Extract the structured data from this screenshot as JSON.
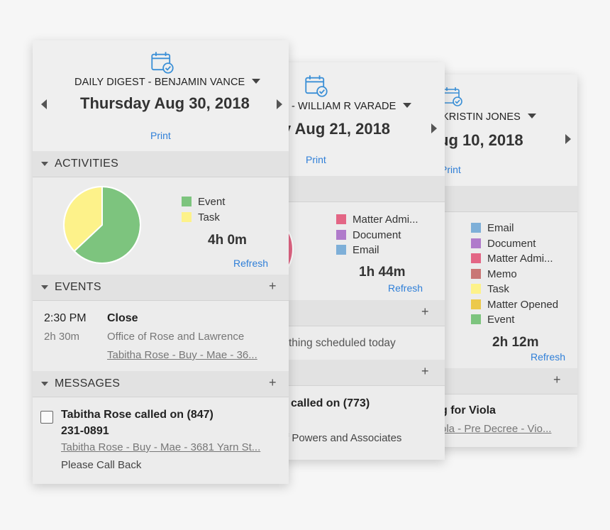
{
  "colors": {
    "event": "#7dc47e",
    "task": "#fdf28a",
    "matter_admin": "#e36685",
    "document": "#b07bcb",
    "email": "#7eafd8",
    "memo": "#c97675",
    "matter_opened": "#ecc94b",
    "link": "#2f7fd8"
  },
  "card3": {
    "who": "KRISTIN JONES",
    "date": "ug 10, 2018",
    "print": "Print",
    "legend": [
      {
        "label": "Email",
        "color": "#7eafd8"
      },
      {
        "label": "Document",
        "color": "#b07bcb"
      },
      {
        "label": "Matter Admi...",
        "color": "#e36685"
      },
      {
        "label": "Memo",
        "color": "#c97675"
      },
      {
        "label": "Task",
        "color": "#fdf28a"
      },
      {
        "label": "Matter Opened",
        "color": "#ecc94b"
      },
      {
        "label": "Event",
        "color": "#7dc47e"
      }
    ],
    "total": "2h 12m",
    "refresh": "Refresh",
    "plus": "+",
    "message_title": "g for Viola",
    "message_link": "ola - Pre Decree - Vio..."
  },
  "card2": {
    "who": "- WILLIAM R VARADE",
    "date": "y Aug 21, 2018",
    "print": "Print",
    "legend": [
      {
        "label": "Matter Admi...",
        "color": "#e36685"
      },
      {
        "label": "Document",
        "color": "#b07bcb"
      },
      {
        "label": "Email",
        "color": "#7eafd8"
      }
    ],
    "total": "1h 44m",
    "refresh": "Refresh",
    "plus": "+",
    "events_empty": "thing scheduled today",
    "message_title": "called on (773)",
    "message_sub": "f Powers and Associates"
  },
  "card1": {
    "who": "DAILY DIGEST - BENJAMIN VANCE",
    "date": "Thursday Aug 30, 2018",
    "print": "Print",
    "activities_label": "ACTIVITIES",
    "chart_data": {
      "type": "pie",
      "title": "Activities",
      "slices": [
        {
          "label": "Event",
          "value": 63,
          "color": "#7dc47e"
        },
        {
          "label": "Task",
          "value": 37,
          "color": "#fdf28a"
        }
      ]
    },
    "legend": [
      {
        "label": "Event",
        "color": "#7dc47e"
      },
      {
        "label": "Task",
        "color": "#fdf28a"
      }
    ],
    "total": "4h 0m",
    "refresh": "Refresh",
    "events_label": "EVENTS",
    "event": {
      "time": "2:30 PM",
      "duration": "2h 30m",
      "title": "Close",
      "location": "Office of Rose and Lawrence",
      "matter": "Tabitha Rose - Buy - Mae - 36..."
    },
    "messages_label": "MESSAGES",
    "message": {
      "title_line1": "Tabitha Rose called on (847)",
      "title_line2": "231-0891",
      "matter": "Tabitha Rose - Buy - Mae - 3681 Yarn St...",
      "note": "Please Call Back"
    },
    "plus": "+"
  }
}
